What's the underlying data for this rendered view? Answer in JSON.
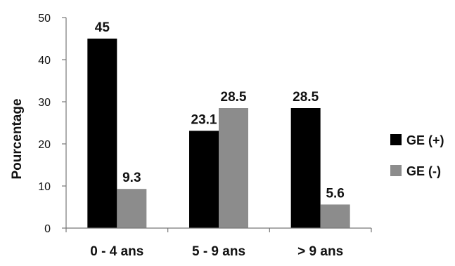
{
  "chart_data": {
    "type": "bar",
    "title": "",
    "xlabel": "",
    "ylabel": "Pourcentage",
    "ylim": [
      0,
      50
    ],
    "yticks": [
      0,
      10,
      20,
      30,
      40,
      50
    ],
    "grid": false,
    "legend_position": "right",
    "categories": [
      "0 - 4 ans",
      "5 - 9 ans",
      "> 9 ans"
    ],
    "series": [
      {
        "name": "GE (+)",
        "values": [
          45,
          23.1,
          28.5
        ],
        "labels": [
          "45",
          "23.1",
          "28.5"
        ],
        "color": "#000000"
      },
      {
        "name": "GE (-)",
        "values": [
          9.3,
          28.5,
          5.6
        ],
        "labels": [
          "9.3",
          "28.5",
          "5.6"
        ],
        "color": "#8c8c8c"
      }
    ]
  }
}
